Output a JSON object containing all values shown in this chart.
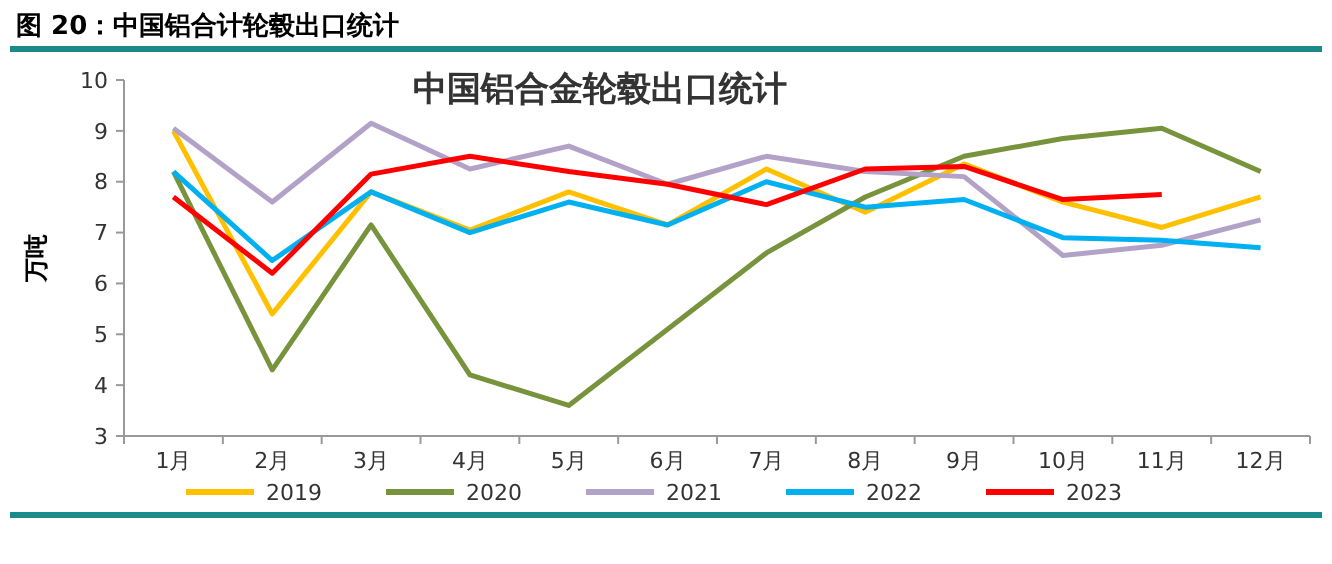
{
  "chart_data": {
    "type": "line",
    "title": "图 20：中国铝合计轮毂出口统计",
    "subtitle": "中国铝合金轮毂出口统计",
    "ylabel": "万吨",
    "categories": [
      "1月",
      "2月",
      "3月",
      "4月",
      "5月",
      "6月",
      "7月",
      "8月",
      "9月",
      "10月",
      "11月",
      "12月"
    ],
    "ylim": [
      3,
      10
    ],
    "yticks": [
      3,
      4,
      5,
      6,
      7,
      8,
      9,
      10
    ],
    "grid": false,
    "legend": "bottom",
    "marker": "none",
    "line_style": "solid",
    "series": [
      {
        "name": "2019",
        "color": "#ffc000",
        "values": [
          9.0,
          5.4,
          7.8,
          7.05,
          7.8,
          7.15,
          8.25,
          7.4,
          8.35,
          7.6,
          7.1,
          7.7
        ]
      },
      {
        "name": "2020",
        "color": "#77933c",
        "values": [
          8.2,
          4.3,
          7.15,
          4.2,
          3.6,
          5.1,
          6.6,
          7.7,
          8.5,
          8.85,
          9.05,
          8.2
        ]
      },
      {
        "name": "2021",
        "color": "#b3a2c7",
        "values": [
          9.05,
          7.6,
          9.15,
          8.25,
          8.7,
          7.95,
          8.5,
          8.2,
          8.1,
          6.55,
          6.75,
          7.25
        ]
      },
      {
        "name": "2022",
        "color": "#00b0f0",
        "values": [
          8.2,
          6.45,
          7.8,
          7.0,
          7.6,
          7.15,
          8.0,
          7.5,
          7.65,
          6.9,
          6.85,
          6.7
        ]
      },
      {
        "name": "2023",
        "color": "#ff0000",
        "values": [
          7.7,
          6.2,
          8.15,
          8.5,
          8.2,
          7.95,
          7.55,
          8.25,
          8.3,
          7.65,
          7.75,
          null
        ]
      }
    ]
  }
}
